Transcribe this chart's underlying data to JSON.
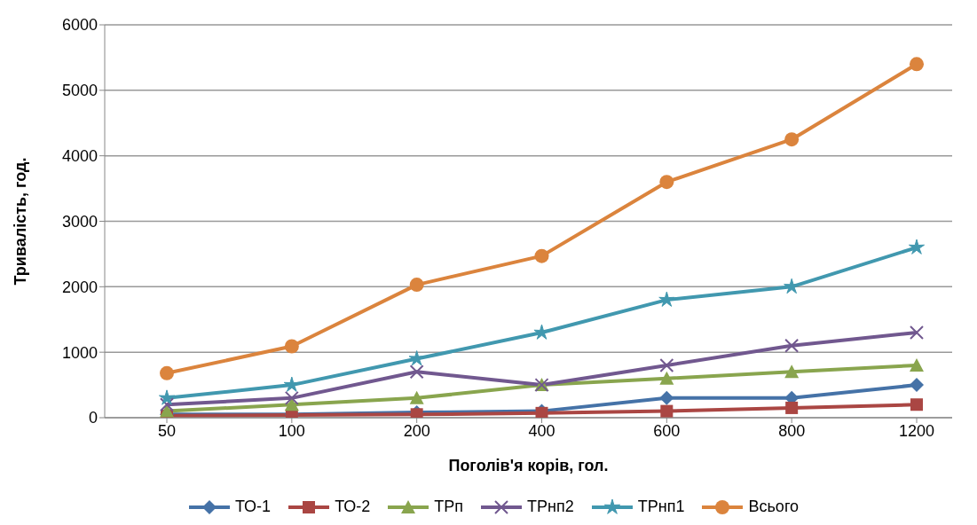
{
  "chart_data": {
    "type": "line",
    "xlabel": "Поголів'я корів, гол.",
    "ylabel": "Тривалість, год.",
    "categories": [
      "50",
      "100",
      "200",
      "400",
      "600",
      "800",
      "1200"
    ],
    "series": [
      {
        "name": "ТО-1",
        "color": "#4572a7",
        "marker": "diamond",
        "values": [
          50,
          50,
          80,
          100,
          300,
          300,
          500
        ]
      },
      {
        "name": "ТО-2",
        "color": "#aa4643",
        "marker": "square",
        "values": [
          30,
          40,
          50,
          70,
          100,
          150,
          200
        ]
      },
      {
        "name": "ТРп",
        "color": "#89a54e",
        "marker": "triangle",
        "values": [
          100,
          200,
          300,
          500,
          600,
          700,
          800
        ]
      },
      {
        "name": "ТРнп2",
        "color": "#71588f",
        "marker": "cross",
        "values": [
          200,
          300,
          700,
          500,
          800,
          1100,
          1300
        ]
      },
      {
        "name": "ТРнп1",
        "color": "#4198af",
        "marker": "star",
        "values": [
          300,
          500,
          900,
          1300,
          1800,
          2000,
          2600
        ]
      },
      {
        "name": "Всього",
        "color": "#db843d",
        "marker": "circle",
        "values": [
          680,
          1090,
          2030,
          2470,
          3600,
          4250,
          5400
        ]
      }
    ],
    "ylim": [
      0,
      6000
    ],
    "yticks": [
      0,
      1000,
      2000,
      3000,
      4000,
      5000,
      6000
    ],
    "grid": "y",
    "legend": "bottom",
    "line_style": "solid"
  }
}
